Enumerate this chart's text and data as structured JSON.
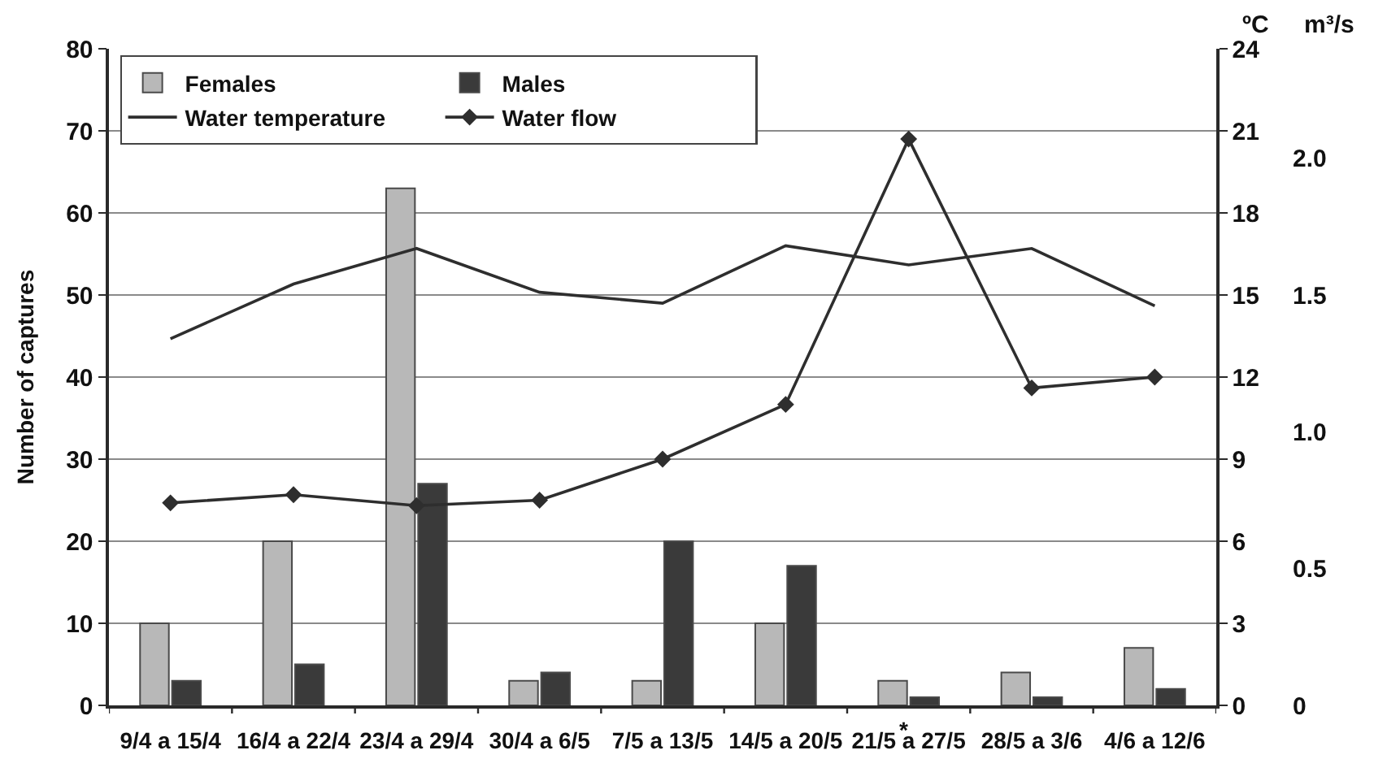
{
  "chart_data": {
    "type": "bar",
    "ylabel": "Number of captures",
    "y2label": "ºC",
    "y3label": "m³/s",
    "categories": [
      "9/4 a 15/4",
      "16/4 a 22/4",
      "23/4 a 29/4",
      "30/4 a 6/5",
      "7/5 a 13/5",
      "14/5 a 20/5",
      "21/5 a 27/5",
      "28/5 a 3/6",
      "4/6 a 12/6"
    ],
    "series": [
      {
        "name": "Females",
        "color": "#b8b8b8",
        "values": [
          10,
          20,
          63,
          3,
          3,
          10,
          3,
          4,
          7
        ]
      },
      {
        "name": "Males",
        "color": "#3a3a3a",
        "values": [
          3,
          5,
          27,
          4,
          20,
          17,
          1,
          1,
          2
        ]
      },
      {
        "name": "Water temperature",
        "type": "line",
        "axis": "y2",
        "color": "#2e2e2e",
        "values": [
          13.4,
          15.4,
          16.7,
          15.1,
          14.7,
          16.8,
          16.1,
          16.7,
          14.6
        ]
      },
      {
        "name": "Water flow",
        "type": "line",
        "axis": "y3",
        "color": "#2e2e2e",
        "marker": "diamond",
        "values": [
          0.74,
          0.77,
          0.73,
          0.75,
          0.9,
          1.1,
          2.07,
          1.16,
          1.2
        ]
      }
    ],
    "ylim": [
      0,
      80
    ],
    "yticks": [
      0,
      10,
      20,
      30,
      40,
      50,
      60,
      70,
      80
    ],
    "y2lim": [
      0,
      24
    ],
    "y2ticks": [
      0,
      3,
      6,
      9,
      12,
      15,
      18,
      21,
      24
    ],
    "y3lim": [
      0,
      2.4
    ],
    "y3ticks": [
      0,
      0.5,
      {
        "value": 1,
        "label": "1.0"
      },
      1.5,
      {
        "value": 2,
        "label": "2.0"
      }
    ],
    "grid": "y",
    "legend": "top left",
    "annotations": [
      "*"
    ]
  }
}
